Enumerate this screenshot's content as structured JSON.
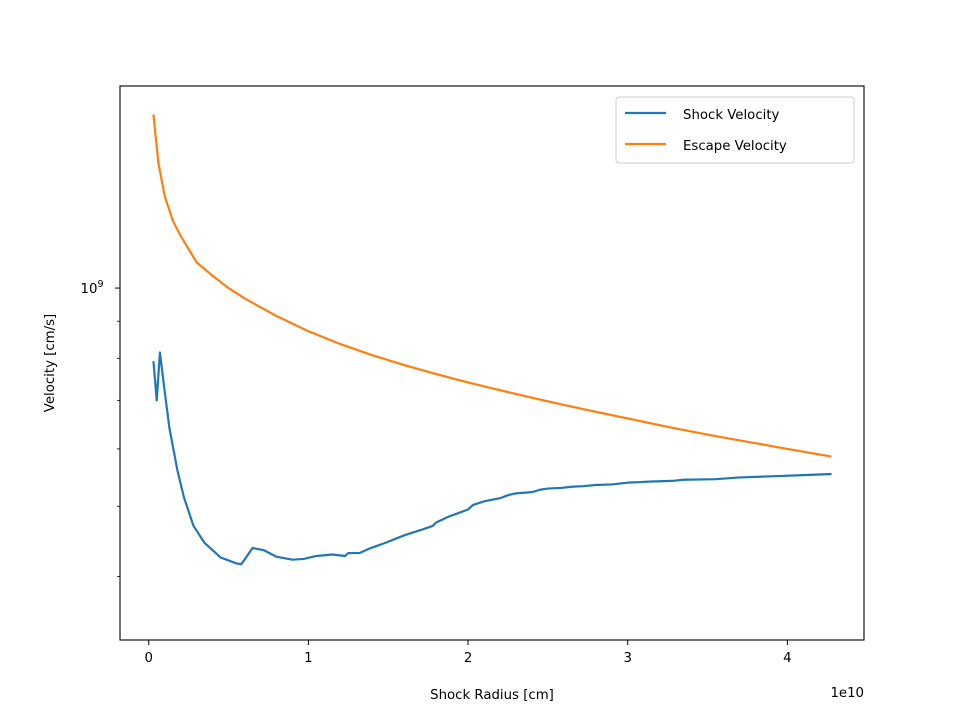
{
  "chart_data": {
    "type": "line",
    "xlabel": "Shock Radius [cm]",
    "ylabel": "Velocity [cm/s]",
    "x_offset_label": "1e10",
    "x_unit_scale": 10000000000.0,
    "xlim": [
      -0.18,
      4.48
    ],
    "ylim": [
      327000000,
      1900000000
    ],
    "yscale": "log",
    "x_ticks": [
      0,
      1,
      2,
      3,
      4
    ],
    "x_tick_labels": [
      "0",
      "1",
      "2",
      "3",
      "4"
    ],
    "y_major_ticks": [
      {
        "value": 1000000000,
        "base": "10",
        "exp": "9"
      }
    ],
    "y_minor_ticks": [
      400000000,
      500000000,
      600000000,
      700000000,
      800000000,
      900000000,
      2000000000
    ],
    "legend": {
      "position": "upper right"
    },
    "grid": false,
    "series": [
      {
        "name": "Shock Velocity",
        "color": "#1f77b4",
        "points": [
          [
            0.03,
            790000000
          ],
          [
            0.05,
            700000000
          ],
          [
            0.07,
            815000000
          ],
          [
            0.1,
            720000000
          ],
          [
            0.13,
            640000000
          ],
          [
            0.18,
            560000000
          ],
          [
            0.22,
            515000000
          ],
          [
            0.28,
            470000000
          ],
          [
            0.35,
            445000000
          ],
          [
            0.45,
            425000000
          ],
          [
            0.55,
            417000000
          ],
          [
            0.58,
            416000000
          ],
          [
            0.65,
            438000000
          ],
          [
            0.72,
            435000000
          ],
          [
            0.8,
            426000000
          ],
          [
            0.9,
            422000000
          ],
          [
            0.97,
            423000000
          ],
          [
            1.05,
            427000000
          ],
          [
            1.15,
            429000000
          ],
          [
            1.23,
            427000000
          ],
          [
            1.25,
            431000000
          ],
          [
            1.32,
            431000000
          ],
          [
            1.38,
            437000000
          ],
          [
            1.48,
            445000000
          ],
          [
            1.6,
            456000000
          ],
          [
            1.72,
            465000000
          ],
          [
            1.78,
            470000000
          ],
          [
            1.8,
            475000000
          ],
          [
            1.88,
            484000000
          ],
          [
            2.0,
            495000000
          ],
          [
            2.03,
            502000000
          ],
          [
            2.1,
            508000000
          ],
          [
            2.2,
            513000000
          ],
          [
            2.25,
            518000000
          ],
          [
            2.3,
            521000000
          ],
          [
            2.4,
            523000000
          ],
          [
            2.45,
            527000000
          ],
          [
            2.5,
            529000000
          ],
          [
            2.58,
            530000000
          ],
          [
            2.65,
            532000000
          ],
          [
            2.72,
            533000000
          ],
          [
            2.8,
            535000000
          ],
          [
            2.9,
            536000000
          ],
          [
            3.0,
            539000000
          ],
          [
            3.08,
            540000000
          ],
          [
            3.15,
            541000000
          ],
          [
            3.28,
            542000000
          ],
          [
            3.35,
            544000000
          ],
          [
            3.55,
            545000000
          ],
          [
            3.7,
            548000000
          ],
          [
            3.9,
            550000000
          ],
          [
            4.1,
            552000000
          ],
          [
            4.27,
            554000000
          ]
        ]
      },
      {
        "name": "Escape Velocity",
        "color": "#ff7f0e",
        "formula_note": "",
        "points": [
          [
            0.03,
            1730000000
          ],
          [
            0.06,
            1490000000
          ],
          [
            0.1,
            1340000000
          ],
          [
            0.15,
            1240000000
          ],
          [
            0.2,
            1180000000
          ],
          [
            0.3,
            1085000000
          ],
          [
            0.4,
            1040000000
          ],
          [
            0.5,
            1000000000
          ],
          [
            0.6,
            968000000
          ],
          [
            0.8,
            915000000
          ],
          [
            1.0,
            872000000
          ],
          [
            1.2,
            837000000
          ],
          [
            1.4,
            808000000
          ],
          [
            1.6,
            783000000
          ],
          [
            1.8,
            761000000
          ],
          [
            2.0,
            741000000
          ],
          [
            2.2,
            723000000
          ],
          [
            2.4,
            706000000
          ],
          [
            2.6,
            690000000
          ],
          [
            2.8,
            675000000
          ],
          [
            3.0,
            661000000
          ],
          [
            3.2,
            647000000
          ],
          [
            3.4,
            634000000
          ],
          [
            3.6,
            622000000
          ],
          [
            3.8,
            611000000
          ],
          [
            4.0,
            600000000
          ],
          [
            4.27,
            586000000
          ]
        ]
      }
    ]
  }
}
